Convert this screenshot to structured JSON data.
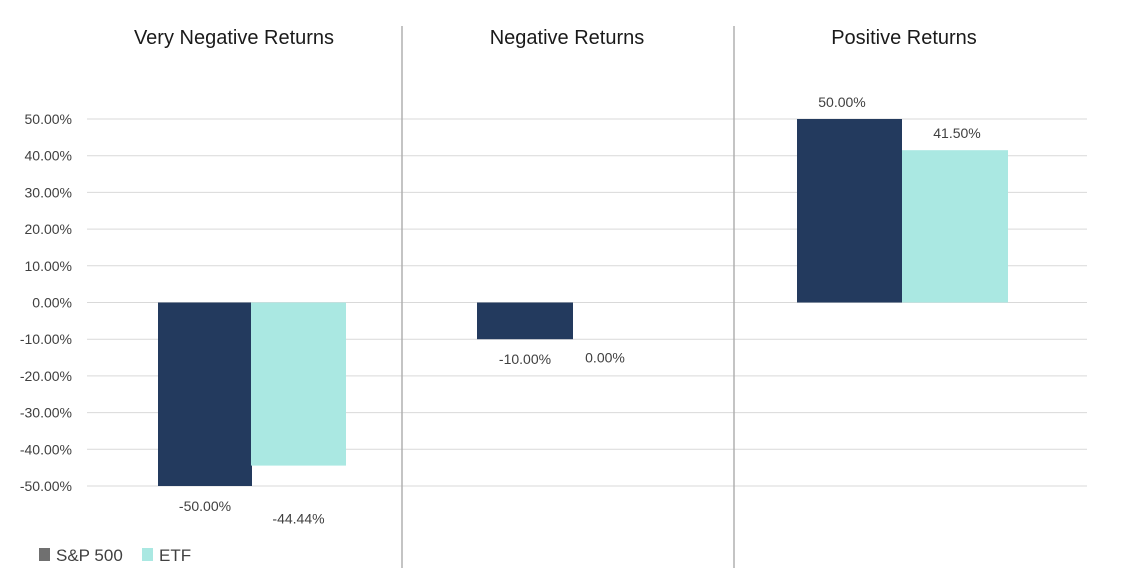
{
  "chart_data": {
    "type": "bar",
    "panels": [
      "Very Negative Returns",
      "Negative Returns",
      "Positive Returns"
    ],
    "series": [
      {
        "name": "S&P 500",
        "values": [
          -50.0,
          -10.0,
          50.0
        ],
        "labels": [
          "-50.00%",
          "-10.00%",
          "50.00%"
        ],
        "color": "#233a5e"
      },
      {
        "name": "ETF",
        "values": [
          -44.44,
          0.0,
          41.5
        ],
        "labels": [
          "-44.44%",
          "0.00%",
          "41.50%"
        ],
        "color": "#aae8e2"
      }
    ],
    "y_ticks": [
      50,
      40,
      30,
      20,
      10,
      0,
      -10,
      -20,
      -30,
      -40,
      -50
    ],
    "y_tick_labels": [
      "50.00%",
      "40.00%",
      "30.00%",
      "20.00%",
      "10.00%",
      "0.00%",
      "-10.00%",
      "-20.00%",
      "-30.00%",
      "-40.00%",
      "-50.00%"
    ],
    "ylim": [
      -50,
      50
    ],
    "grid": true,
    "legend": "bottom-left",
    "divider_color": "#b0b0b0",
    "grid_color": "#d9d9d9",
    "legend_marker_color_sp500": "#707070"
  }
}
